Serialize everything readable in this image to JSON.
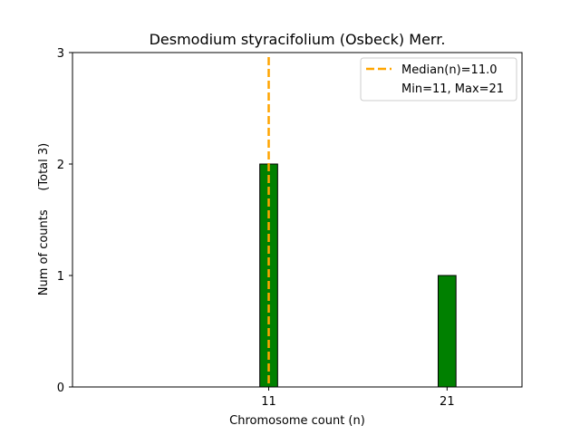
{
  "chart_data": {
    "type": "bar",
    "title": "Desmodium styracifolium (Osbeck) Merr.",
    "xlabel": "Chromosome count (n)",
    "ylabel": "Num of counts     (Total 3)",
    "x": [
      11,
      21
    ],
    "values": [
      2,
      1
    ],
    "xlim": [
      0,
      25.2
    ],
    "ylim": [
      0,
      3
    ],
    "xticks": [
      11,
      21
    ],
    "yticks": [
      0,
      1,
      2,
      3
    ],
    "median": 11.0,
    "legend": {
      "position": "top-right",
      "entries": [
        "Median(n)=11.0",
        "Min=11, Max=21"
      ]
    },
    "colors": {
      "bar": "#008000",
      "bar_edge": "#000000",
      "median_line": "#FFA500"
    },
    "grid": false
  }
}
